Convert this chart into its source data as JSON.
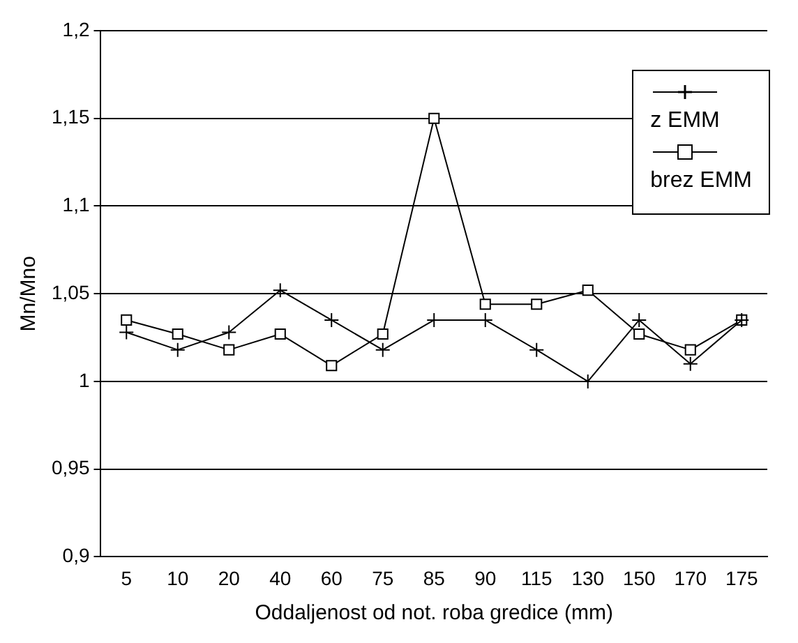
{
  "chart_data": {
    "type": "line",
    "xlabel": "Oddaljenost od not. roba gredice (mm)",
    "ylabel": "Mn/Mno",
    "categories": [
      "5",
      "10",
      "20",
      "40",
      "60",
      "75",
      "85",
      "90",
      "115",
      "130",
      "150",
      "170",
      "175"
    ],
    "series": [
      {
        "name": "z EMM",
        "color": "#000000",
        "marker": "cross",
        "values": [
          1.028,
          1.018,
          1.028,
          1.052,
          1.035,
          1.018,
          1.035,
          1.035,
          1.018,
          1.0,
          1.035,
          1.01,
          1.035
        ]
      },
      {
        "name": "brez EMM",
        "color": "#000000",
        "marker": "square",
        "values": [
          1.035,
          1.027,
          1.018,
          1.027,
          1.009,
          1.027,
          1.15,
          1.044,
          1.044,
          1.052,
          1.027,
          1.018,
          1.035
        ]
      }
    ],
    "ylim": [
      0.9,
      1.2
    ],
    "yticks": [
      {
        "value": 0.9,
        "label": "0,9"
      },
      {
        "value": 0.95,
        "label": "0,95"
      },
      1,
      {
        "value": 1.05,
        "label": "1,05"
      },
      {
        "value": 1.1,
        "label": "1,1"
      },
      {
        "value": 1.15,
        "label": "1,15"
      },
      {
        "value": 1.2,
        "label": "1,2"
      }
    ],
    "grid": "y",
    "legend": "top right",
    "line_style": "solid"
  }
}
